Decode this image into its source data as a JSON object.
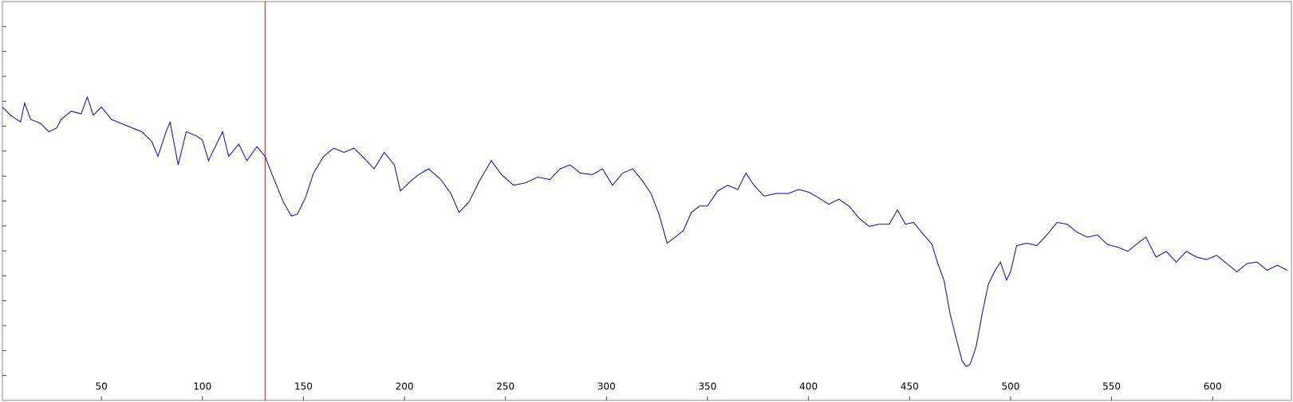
{
  "chart_data": {
    "type": "line",
    "x": [
      1,
      5,
      10,
      12,
      15,
      20,
      24,
      28,
      30,
      35,
      40,
      43,
      46,
      50,
      55,
      60,
      65,
      70,
      75,
      78,
      82,
      84,
      88,
      92,
      97,
      100,
      103,
      106,
      110,
      113,
      118,
      122,
      127,
      131,
      135,
      140,
      144,
      147,
      151,
      155,
      160,
      165,
      170,
      175,
      180,
      185,
      190,
      195,
      198,
      203,
      207,
      212,
      218,
      223,
      227,
      232,
      237,
      243,
      248,
      254,
      260,
      266,
      272,
      277,
      282,
      287,
      293,
      298,
      303,
      308,
      313,
      318,
      322,
      326,
      330,
      334,
      338,
      342,
      346,
      350,
      355,
      360,
      365,
      369,
      373,
      378,
      384,
      390,
      395,
      400,
      405,
      410,
      415,
      420,
      425,
      430,
      435,
      440,
      444,
      448,
      452,
      457,
      461,
      464,
      467,
      470,
      473,
      476,
      478,
      480,
      483,
      486,
      489,
      492,
      495,
      498,
      500,
      503,
      508,
      513,
      518,
      523,
      528,
      533,
      538,
      543,
      548,
      553,
      558,
      563,
      567,
      572,
      577,
      582,
      587,
      592,
      597,
      602,
      607,
      612,
      617,
      622,
      627,
      632,
      637
    ],
    "series": [
      {
        "color": "#1c1c9a",
        "values": [
          11.77,
          11.44,
          11.17,
          11.93,
          11.27,
          11.11,
          10.78,
          10.94,
          11.27,
          11.6,
          11.5,
          12.17,
          11.44,
          11.77,
          11.27,
          11.11,
          10.94,
          10.78,
          10.38,
          9.79,
          10.78,
          11.17,
          9.45,
          10.78,
          10.61,
          10.45,
          9.62,
          10.12,
          10.78,
          9.79,
          10.28,
          9.62,
          10.18,
          9.79,
          8.96,
          7.97,
          7.4,
          7.47,
          8.13,
          9.12,
          9.79,
          10.12,
          9.95,
          10.12,
          9.72,
          9.29,
          9.95,
          9.45,
          8.4,
          8.79,
          9.06,
          9.29,
          8.86,
          8.3,
          7.54,
          7.97,
          8.79,
          9.62,
          9.06,
          8.63,
          8.73,
          8.96,
          8.86,
          9.29,
          9.45,
          9.12,
          9.06,
          9.29,
          8.63,
          9.12,
          9.29,
          8.79,
          8.3,
          7.47,
          6.31,
          6.55,
          6.81,
          7.54,
          7.8,
          7.8,
          8.4,
          8.63,
          8.46,
          9.12,
          8.63,
          8.2,
          8.3,
          8.3,
          8.46,
          8.36,
          8.13,
          7.87,
          8.07,
          7.8,
          7.31,
          6.98,
          7.07,
          7.07,
          7.64,
          7.07,
          7.14,
          6.64,
          6.28,
          5.49,
          4.83,
          3.5,
          2.51,
          1.59,
          1.36,
          1.45,
          2.18,
          3.5,
          4.66,
          5.16,
          5.55,
          4.83,
          5.16,
          6.21,
          6.31,
          6.21,
          6.64,
          7.14,
          7.07,
          6.74,
          6.55,
          6.64,
          6.25,
          6.15,
          5.98,
          6.31,
          6.55,
          5.75,
          5.98,
          5.55,
          5.98,
          5.75,
          5.65,
          5.82,
          5.49,
          5.16,
          5.49,
          5.55,
          5.22,
          5.42,
          5.22
        ]
      }
    ],
    "marker_x": 131,
    "marker_color": "#b22222",
    "xlim": [
      1,
      639
    ],
    "xticks": [
      50,
      100,
      150,
      200,
      250,
      300,
      350,
      400,
      450,
      500,
      550,
      600
    ],
    "ylim": [
      0,
      16
    ],
    "yticks": [
      1,
      2,
      3,
      4,
      5,
      6,
      7,
      8,
      9,
      10,
      11,
      12,
      13,
      14,
      15
    ]
  }
}
